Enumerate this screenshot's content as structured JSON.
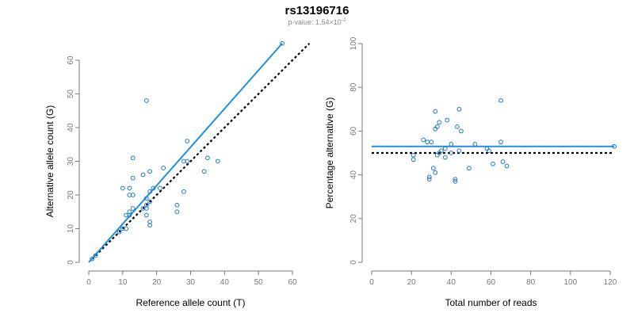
{
  "header": {
    "title": "rs13196716",
    "subtitle_prefix": "p-value: 1.54×10",
    "subtitle_exponent": "-2"
  },
  "colors": {
    "point": "#1f78c8",
    "fit": "#1f8fe0",
    "reference": "#000000"
  },
  "chart_data": [
    {
      "type": "scatter",
      "name": "left",
      "xlabel": "Reference allele count (T)",
      "ylabel": "Alternative allele count (G)",
      "xlim": [
        0,
        60
      ],
      "ylim": [
        0,
        60
      ],
      "xticks": [
        0,
        10,
        20,
        30,
        40,
        50,
        60
      ],
      "yticks": [
        0,
        10,
        20,
        30,
        40,
        50,
        60
      ],
      "points": [
        [
          57,
          65
        ],
        [
          17,
          48
        ],
        [
          29,
          36
        ],
        [
          13,
          31
        ],
        [
          35,
          31
        ],
        [
          38,
          30
        ],
        [
          28,
          30
        ],
        [
          29,
          30
        ],
        [
          22,
          28
        ],
        [
          18,
          27
        ],
        [
          34,
          27
        ],
        [
          16,
          26
        ],
        [
          13,
          25
        ],
        [
          10,
          22
        ],
        [
          12,
          22
        ],
        [
          21,
          22
        ],
        [
          19,
          22
        ],
        [
          28,
          21
        ],
        [
          12,
          20
        ],
        [
          18,
          21
        ],
        [
          13,
          20
        ],
        [
          17,
          19
        ],
        [
          18,
          18
        ],
        [
          17,
          17
        ],
        [
          26,
          17
        ],
        [
          17,
          16
        ],
        [
          16,
          16
        ],
        [
          13,
          16
        ],
        [
          12,
          15
        ],
        [
          26,
          15
        ],
        [
          17,
          14
        ],
        [
          11,
          14
        ],
        [
          12,
          14
        ],
        [
          18,
          12
        ],
        [
          18,
          11
        ],
        [
          10,
          10
        ],
        [
          11,
          10
        ],
        [
          9,
          9
        ],
        [
          2,
          2
        ],
        [
          1,
          1
        ]
      ],
      "fit_line": [
        [
          0,
          0
        ],
        [
          57,
          65
        ]
      ],
      "reference_line": [
        [
          1,
          1
        ],
        [
          65,
          65
        ]
      ]
    },
    {
      "type": "scatter",
      "name": "right",
      "xlabel": "Total number of reads",
      "ylabel": "Percentage alternative (G)",
      "xlim": [
        0,
        120
      ],
      "ylim": [
        0,
        100
      ],
      "xticks": [
        0,
        20,
        40,
        60,
        80,
        100,
        120
      ],
      "yticks": [
        0,
        20,
        40,
        60,
        80,
        100
      ],
      "points": [
        [
          65,
          74
        ],
        [
          44,
          70
        ],
        [
          32,
          69
        ],
        [
          38,
          65
        ],
        [
          34,
          64
        ],
        [
          33,
          62
        ],
        [
          43,
          62
        ],
        [
          32,
          61
        ],
        [
          45,
          60
        ],
        [
          26,
          56
        ],
        [
          28,
          55
        ],
        [
          30,
          55
        ],
        [
          65,
          55
        ],
        [
          52,
          54
        ],
        [
          40,
          54
        ],
        [
          37,
          52
        ],
        [
          35,
          51
        ],
        [
          34,
          50
        ],
        [
          40,
          50
        ],
        [
          44,
          51
        ],
        [
          59,
          51
        ],
        [
          58,
          52
        ],
        [
          33,
          49
        ],
        [
          21,
          49
        ],
        [
          37,
          48
        ],
        [
          21,
          47
        ],
        [
          66,
          46
        ],
        [
          61,
          45
        ],
        [
          68,
          44
        ],
        [
          49,
          43
        ],
        [
          31,
          43
        ],
        [
          32,
          41
        ],
        [
          29,
          39
        ],
        [
          42,
          38
        ],
        [
          29,
          38
        ],
        [
          42,
          37
        ],
        [
          122,
          53
        ]
      ],
      "fit_line": [
        [
          0,
          53
        ],
        [
          122,
          53
        ]
      ],
      "reference_line": [
        [
          0,
          50
        ],
        [
          122,
          50
        ]
      ]
    }
  ]
}
